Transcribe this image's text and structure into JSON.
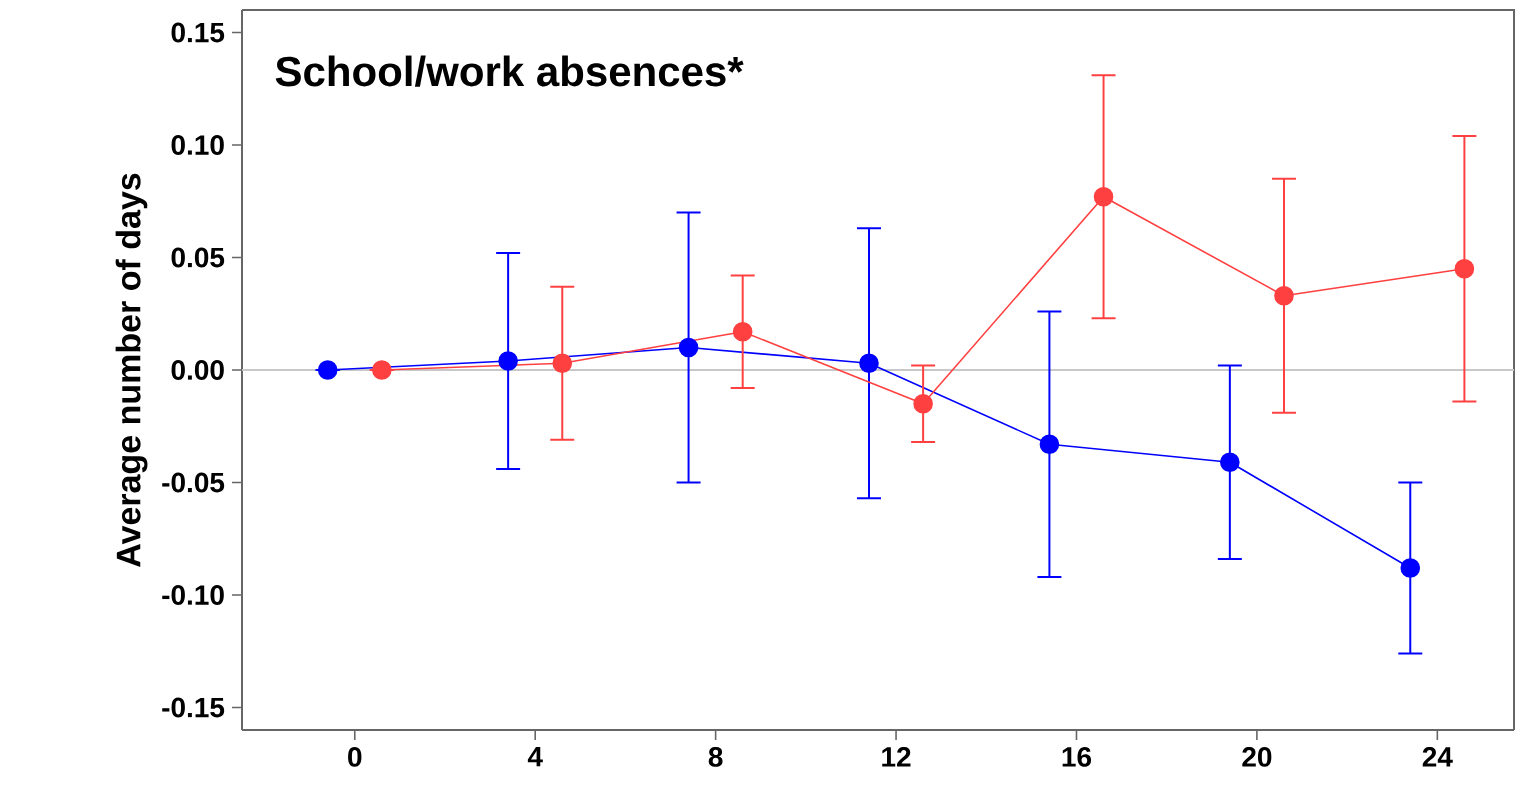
{
  "chart_data": {
    "type": "line",
    "title": "School/work absences*",
    "ylabel": "Average number of days",
    "xlim": [
      -2.5,
      25.7
    ],
    "ylim": [
      -0.16,
      0.16
    ],
    "xticks": [
      0,
      4,
      8,
      12,
      16,
      20,
      24
    ],
    "yticks": [
      {
        "value": -0.15,
        "label": "-0.15"
      },
      {
        "value": -0.1,
        "label": "-0.10"
      },
      {
        "value": -0.05,
        "label": "-0.05"
      },
      {
        "value": 0,
        "label": "0.00"
      },
      {
        "value": 0.05,
        "label": "0.05"
      },
      {
        "value": 0.1,
        "label": "0.10"
      },
      {
        "value": 0.15,
        "label": "0.15"
      }
    ],
    "grid": false,
    "marker": "circle",
    "line_style": "solid",
    "ref_lines": [
      {
        "axis": "y",
        "value": 0,
        "color": "#c8c8c8"
      }
    ],
    "series": [
      {
        "color": "#0000ff",
        "x": [
          -0.6,
          3.4,
          7.4,
          11.4,
          15.4,
          19.4,
          23.4
        ],
        "values": [
          0,
          0.004,
          0.01,
          0.003,
          -0.033,
          -0.041,
          -0.088
        ],
        "errors": [
          null,
          0.048,
          0.06,
          0.06,
          0.059,
          0.043,
          0.038
        ]
      },
      {
        "color": "#ff4040",
        "x": [
          0.6,
          4.6,
          8.6,
          12.6,
          16.6,
          20.6,
          24.6
        ],
        "values": [
          0,
          0.003,
          0.017,
          -0.015,
          0.077,
          0.033,
          0.045
        ],
        "errors": [
          null,
          0.034,
          0.025,
          0.017,
          0.054,
          0.052,
          0.059
        ]
      }
    ]
  }
}
